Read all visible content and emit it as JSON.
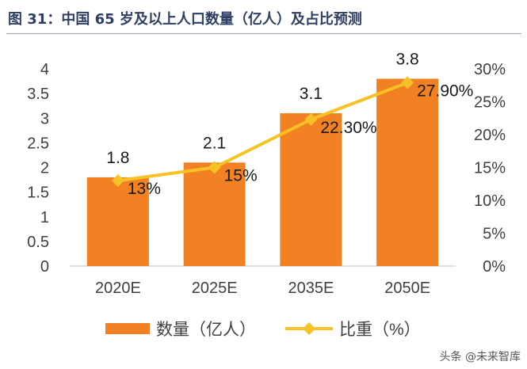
{
  "figure": {
    "title": "图 31：中国 65 岁及以上人口数量（亿人）及占比预测",
    "watermark": "头条 @未来智库"
  },
  "colors": {
    "bar": "#f28123",
    "line": "#f7c226",
    "title": "#2e3f63"
  },
  "chart_data": {
    "type": "bar",
    "categories": [
      "2020E",
      "2025E",
      "2035E",
      "2050E"
    ],
    "series": [
      {
        "name": "数量（亿人）",
        "type": "bar",
        "axis": "left",
        "values": [
          1.8,
          2.1,
          3.1,
          3.8
        ],
        "labels": [
          "1.8",
          "2.1",
          "3.1",
          "3.8"
        ]
      },
      {
        "name": "比重（%）",
        "type": "line",
        "axis": "right",
        "values": [
          13,
          15,
          22.3,
          27.9
        ],
        "labels": [
          "13%",
          "15%",
          "22.30%",
          "27.90%"
        ]
      }
    ],
    "left_axis": {
      "ylim": [
        0,
        4
      ],
      "ticks": [
        0,
        0.5,
        1,
        1.5,
        2,
        2.5,
        3,
        3.5,
        4
      ],
      "tick_labels": [
        "0",
        "0.5",
        "1",
        "1.5",
        "2",
        "2.5",
        "3",
        "3.5",
        "4"
      ]
    },
    "right_axis": {
      "ylim": [
        0,
        30
      ],
      "ticks": [
        0,
        5,
        10,
        15,
        20,
        25,
        30
      ],
      "tick_labels": [
        "0%",
        "5%",
        "10%",
        "15%",
        "20%",
        "25%",
        "30%"
      ]
    },
    "grid": false,
    "legend_position": "bottom"
  }
}
